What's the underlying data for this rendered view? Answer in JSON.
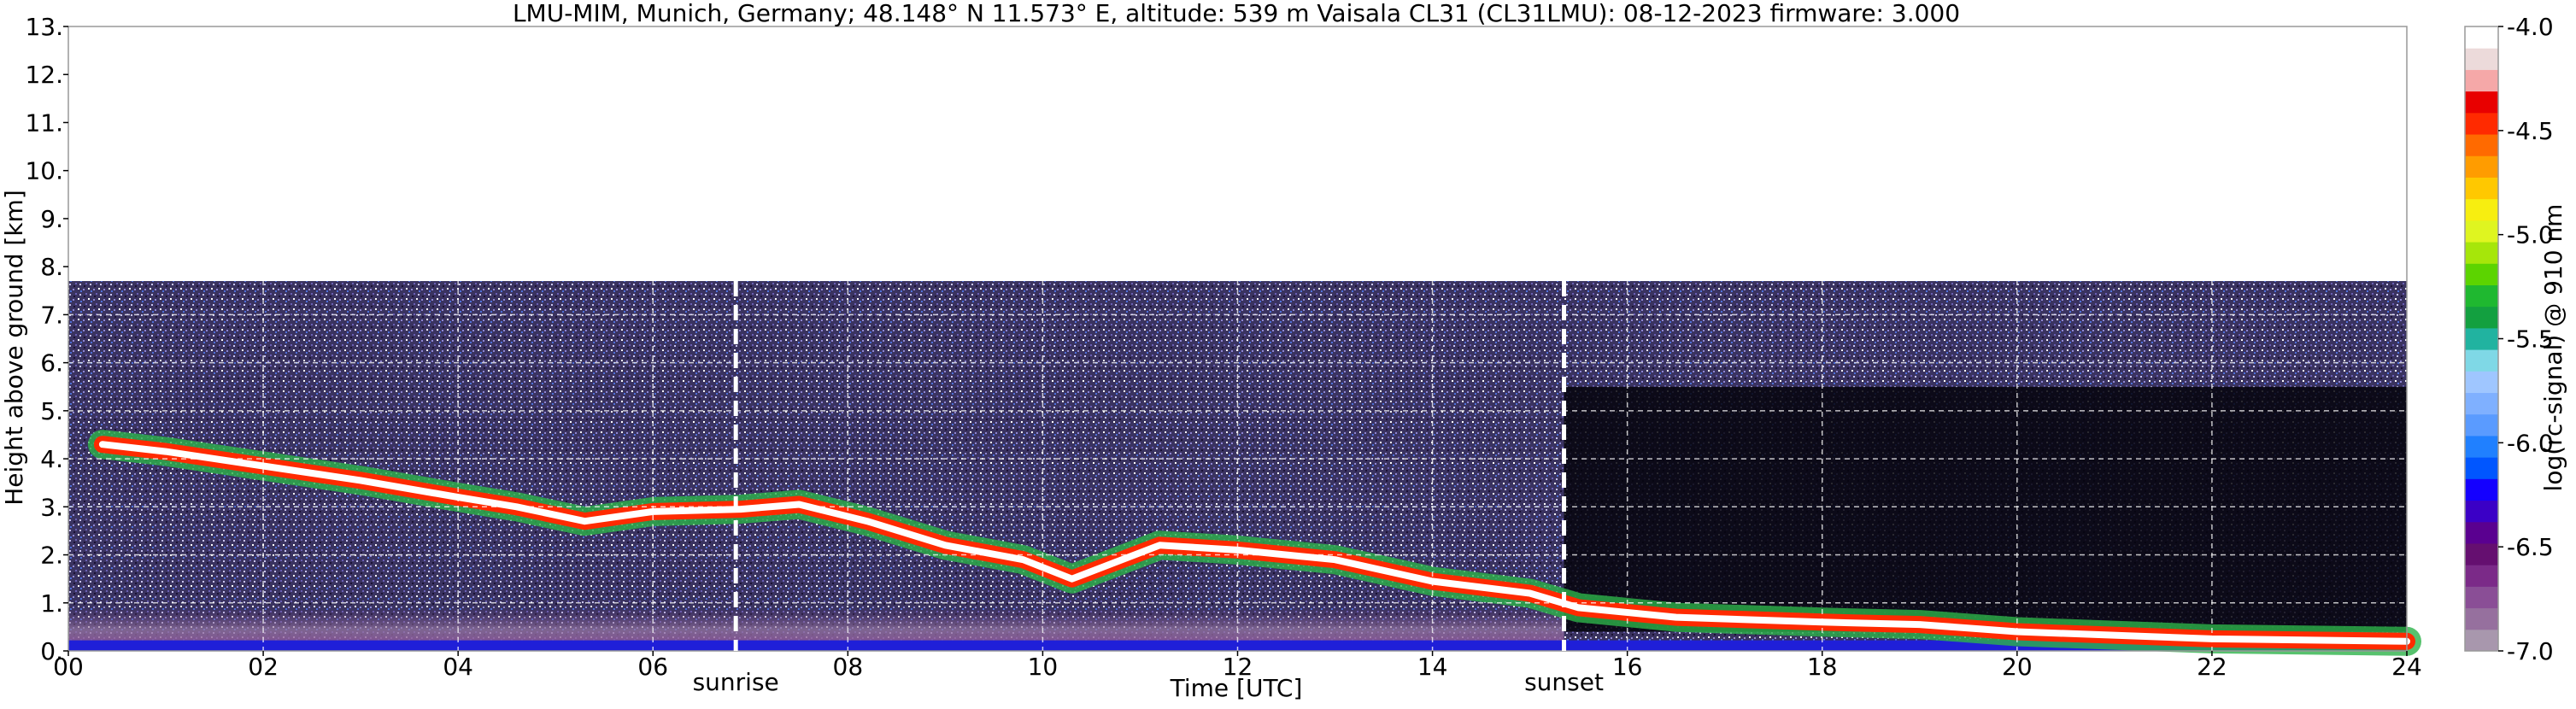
{
  "chart_data": {
    "type": "heatmap",
    "title": "LMU-MIM, Munich, Germany; 48.148° N 11.573° E, altitude: 539 m    Vaisala CL31 (CL31LMU): 08-12-2023    firmware: 3.000",
    "xlabel": "Time [UTC]",
    "ylabel": "Height above ground [km]",
    "xlim": [
      0,
      24
    ],
    "ylim": [
      0,
      13
    ],
    "x_ticks": [
      0,
      2,
      4,
      6,
      8,
      10,
      12,
      14,
      16,
      18,
      20,
      22,
      24
    ],
    "x_tick_labels": [
      "00",
      "02",
      "04",
      "06",
      "08",
      "10",
      "12",
      "14",
      "16",
      "18",
      "20",
      "22",
      "24"
    ],
    "y_ticks": [
      0,
      1,
      2,
      3,
      4,
      5,
      6,
      7,
      8,
      9,
      10,
      11,
      12,
      13
    ],
    "y_tick_labels": [
      "0.",
      "1.",
      "2.",
      "3.",
      "4.",
      "5.",
      "6.",
      "7.",
      "8.",
      "9.",
      "10.",
      "11.",
      "12.",
      "13."
    ],
    "grid": true,
    "measurement_top_km": 7.7,
    "annotations": [
      {
        "label": "sunrise",
        "x": 6.85
      },
      {
        "label": "sunset",
        "x": 15.35
      }
    ],
    "colorbar": {
      "label": "log(rc-signal) @ 910 nm",
      "range": [
        -7.0,
        -4.0
      ],
      "ticks": [
        -7.0,
        -6.5,
        -6.0,
        -5.5,
        -5.0,
        -4.5,
        -4.0
      ],
      "tick_labels": [
        "-7.0",
        "-6.5",
        "-6.0",
        "-5.5",
        "-5.0",
        "-4.5",
        "-4.0"
      ],
      "colors": [
        "#a897ad",
        "#96709e",
        "#8a4e96",
        "#7b2a88",
        "#650f70",
        "#5a0090",
        "#3b00c6",
        "#1400ff",
        "#0056ff",
        "#2080ff",
        "#5a9bff",
        "#7fb0ff",
        "#9fc6ff",
        "#7fd8e6",
        "#21b3a0",
        "#13a040",
        "#1fb830",
        "#5cd400",
        "#a6e60a",
        "#dff520",
        "#f7ee10",
        "#ffc800",
        "#ff9c00",
        "#ff6a00",
        "#ff2a00",
        "#e80000",
        "#f5a8a8",
        "#ecdada",
        "#ffffff"
      ]
    },
    "cloud_layers": [
      {
        "name": "",
        "points": [
          [
            0.35,
            4.3
          ],
          [
            1.0,
            4.15
          ],
          [
            2.0,
            3.85
          ],
          [
            3.0,
            3.55
          ],
          [
            4.0,
            3.2
          ],
          [
            4.6,
            3.0
          ],
          [
            5.3,
            2.7
          ],
          [
            6.0,
            2.9
          ],
          [
            6.9,
            2.95
          ],
          [
            7.5,
            3.05
          ],
          [
            8.2,
            2.7
          ],
          [
            9.0,
            2.2
          ],
          [
            9.8,
            1.9
          ],
          [
            10.3,
            1.5
          ],
          [
            11.2,
            2.2
          ],
          [
            12.0,
            2.1
          ],
          [
            13.0,
            1.9
          ],
          [
            14.0,
            1.45
          ],
          [
            15.0,
            1.2
          ],
          [
            15.5,
            0.9
          ],
          [
            16.5,
            0.7
          ],
          [
            18.0,
            0.6
          ],
          [
            19.0,
            0.55
          ],
          [
            20.0,
            0.4
          ],
          [
            22.0,
            0.25
          ],
          [
            24.0,
            0.2
          ]
        ]
      }
    ]
  }
}
